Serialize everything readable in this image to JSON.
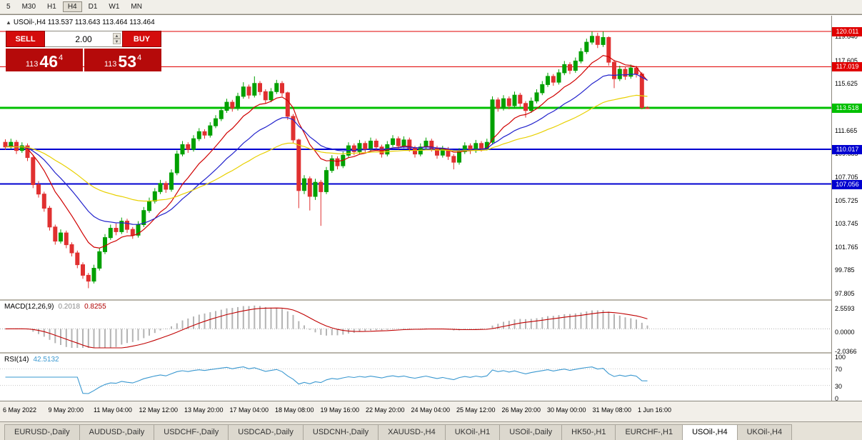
{
  "toolbar": {
    "buttons": [
      "5",
      "M30",
      "H1",
      "H4",
      "D1",
      "W1",
      "MN"
    ],
    "active": "H4"
  },
  "chart_header": {
    "marker": "▲",
    "symbol": "USOil-,H4",
    "ohlc": "113.537 113.643 113.464 113.464"
  },
  "trade_panel": {
    "sell_label": "SELL",
    "buy_label": "BUY",
    "volume": "2.00",
    "bid": {
      "prefix": "113",
      "main": "46",
      "sup": "4"
    },
    "ask": {
      "prefix": "113",
      "main": "53",
      "sup": "4"
    }
  },
  "macd": {
    "label": "MACD(12,26,9)",
    "main_value": "0.2018",
    "signal_value": "0.8255",
    "axis": [
      "2.5593",
      "0.0000",
      "-2.0366"
    ],
    "histogram_color": "#b4b4b4",
    "signal_color": "#c00000"
  },
  "rsi": {
    "label": "RSI(14)",
    "value": "42.5132",
    "axis": [
      "100",
      "70",
      "30",
      "0"
    ],
    "line_color": "#3a98d0"
  },
  "tabs": {
    "items": [
      "EURUSD-,Daily",
      "AUDUSD-,Daily",
      "USDCHF-,Daily",
      "USDCAD-,Daily",
      "USDCNH-,Daily",
      "XAUUSD-,H4",
      "UKOil-,H1",
      "USOil-,Daily",
      "HK50-,H1",
      "EURCHF-,H1",
      "USOil-,H4",
      "UKOil-,H4"
    ],
    "active": "USOil-,H4"
  },
  "chart_data": {
    "type": "candlestick",
    "symbol": "USOil-",
    "timeframe": "H4",
    "up_color": "#00a000",
    "down_color": "#e03030",
    "price_ticks": [
      "119.640",
      "117.605",
      "115.625",
      "113.645",
      "111.665",
      "109.685",
      "107.705",
      "105.725",
      "103.745",
      "101.765",
      "99.785",
      "97.805"
    ],
    "time_labels": [
      "6 May 2022",
      "9 May 20:00",
      "11 May 04:00",
      "12 May 12:00",
      "13 May 20:00",
      "17 May 04:00",
      "18 May 08:00",
      "19 May 16:00",
      "22 May 20:00",
      "24 May 04:00",
      "25 May 12:00",
      "26 May 20:00",
      "30 May 00:00",
      "31 May 08:00",
      "1 Jun 16:00"
    ],
    "levels": [
      {
        "value": 120.011,
        "label": "120.011",
        "color": "#e00000",
        "width": 1
      },
      {
        "value": 117.019,
        "label": "117.019",
        "color": "#e00000",
        "width": 1
      },
      {
        "value": 113.518,
        "label": "113.518",
        "color": "#00c000",
        "width": 3
      },
      {
        "value": 110.017,
        "label": "110.017",
        "color": "#0000d0",
        "width": 2
      },
      {
        "value": 107.056,
        "label": "107.056",
        "color": "#0000d0",
        "width": 2
      }
    ],
    "moving_averages": [
      {
        "period": 10,
        "method": "ema",
        "color": "#d00000"
      },
      {
        "period": 21,
        "method": "ema",
        "color": "#2222cc"
      },
      {
        "period": 45,
        "method": "ema",
        "color": "#e8d000"
      }
    ],
    "macd_axis_range": [
      -2.0366,
      2.5593
    ],
    "rsi_axis_range": [
      0,
      100
    ],
    "candles": [
      [
        110.6,
        110.85,
        109.95,
        110.2
      ],
      [
        110.2,
        110.9,
        110.0,
        110.6
      ],
      [
        110.6,
        110.8,
        109.6,
        109.9
      ],
      [
        109.9,
        110.6,
        109.7,
        110.3
      ],
      [
        110.3,
        110.5,
        109.0,
        109.3
      ],
      [
        109.3,
        109.45,
        106.7,
        107.0
      ],
      [
        107.0,
        107.3,
        105.9,
        106.2
      ],
      [
        106.2,
        106.4,
        104.7,
        105.0
      ],
      [
        105.0,
        105.2,
        103.1,
        103.4
      ],
      [
        103.4,
        103.6,
        101.9,
        102.2
      ],
      [
        102.2,
        103.2,
        102.0,
        102.9
      ],
      [
        102.9,
        103.1,
        101.6,
        101.9
      ],
      [
        101.9,
        102.1,
        100.9,
        101.2
      ],
      [
        101.2,
        101.4,
        99.9,
        100.2
      ],
      [
        100.2,
        100.4,
        99.0,
        99.3
      ],
      [
        99.3,
        99.5,
        98.2,
        98.8
      ],
      [
        98.8,
        100.2,
        98.6,
        99.9
      ],
      [
        99.9,
        101.6,
        99.7,
        101.3
      ],
      [
        101.3,
        102.8,
        101.1,
        102.5
      ],
      [
        102.5,
        103.6,
        102.3,
        103.3
      ],
      [
        103.3,
        103.7,
        102.7,
        103.0
      ],
      [
        103.0,
        104.2,
        102.8,
        103.9
      ],
      [
        103.9,
        104.1,
        102.9,
        103.2
      ],
      [
        103.2,
        103.4,
        102.4,
        102.7
      ],
      [
        102.7,
        103.9,
        102.5,
        103.6
      ],
      [
        103.6,
        105.1,
        103.4,
        104.8
      ],
      [
        104.8,
        105.9,
        104.6,
        105.6
      ],
      [
        105.6,
        106.7,
        105.4,
        106.4
      ],
      [
        106.4,
        107.4,
        106.2,
        107.1
      ],
      [
        107.1,
        107.3,
        106.3,
        106.6
      ],
      [
        106.6,
        108.3,
        106.4,
        108.0
      ],
      [
        108.0,
        109.9,
        107.8,
        109.6
      ],
      [
        109.6,
        110.7,
        109.4,
        110.4
      ],
      [
        110.4,
        110.6,
        109.7,
        110.0
      ],
      [
        110.0,
        111.2,
        109.8,
        110.9
      ],
      [
        110.9,
        111.8,
        110.7,
        111.5
      ],
      [
        111.5,
        111.7,
        110.9,
        111.2
      ],
      [
        111.2,
        112.3,
        111.0,
        112.0
      ],
      [
        112.0,
        112.9,
        111.8,
        112.6
      ],
      [
        112.6,
        113.6,
        112.4,
        113.3
      ],
      [
        113.3,
        114.3,
        113.1,
        114.0
      ],
      [
        114.0,
        114.2,
        113.2,
        113.5
      ],
      [
        113.5,
        114.8,
        113.3,
        114.5
      ],
      [
        114.5,
        115.7,
        114.3,
        115.3
      ],
      [
        115.3,
        115.5,
        114.3,
        114.6
      ],
      [
        114.6,
        116.2,
        114.4,
        115.6
      ],
      [
        115.6,
        115.8,
        114.6,
        114.9
      ],
      [
        114.9,
        115.1,
        113.9,
        114.2
      ],
      [
        114.2,
        115.2,
        114.0,
        114.9
      ],
      [
        114.9,
        115.9,
        114.7,
        115.6
      ],
      [
        115.6,
        115.8,
        114.5,
        114.8
      ],
      [
        114.8,
        114.9,
        112.5,
        112.8
      ],
      [
        112.8,
        113.0,
        110.5,
        110.8
      ],
      [
        110.8,
        110.9,
        105.0,
        106.5
      ],
      [
        106.5,
        107.8,
        106.2,
        107.5
      ],
      [
        107.5,
        107.7,
        104.8,
        106.0
      ],
      [
        106.0,
        107.5,
        105.7,
        107.2
      ],
      [
        107.2,
        107.4,
        103.5,
        106.4
      ],
      [
        106.4,
        108.5,
        106.2,
        108.2
      ],
      [
        108.2,
        109.5,
        108.0,
        109.2
      ],
      [
        109.2,
        109.4,
        108.3,
        108.6
      ],
      [
        108.6,
        109.8,
        108.4,
        109.5
      ],
      [
        109.5,
        110.6,
        109.3,
        110.3
      ],
      [
        110.3,
        110.5,
        109.5,
        109.8
      ],
      [
        109.8,
        110.8,
        109.6,
        110.5
      ],
      [
        110.5,
        110.7,
        109.7,
        110.0
      ],
      [
        110.0,
        111.0,
        109.8,
        110.7
      ],
      [
        110.7,
        110.9,
        109.9,
        110.2
      ],
      [
        110.2,
        110.4,
        109.3,
        109.6
      ],
      [
        109.6,
        110.7,
        109.4,
        110.4
      ],
      [
        110.4,
        111.2,
        110.2,
        110.9
      ],
      [
        110.9,
        111.1,
        110.0,
        110.3
      ],
      [
        110.3,
        111.1,
        110.1,
        110.8
      ],
      [
        110.8,
        111.0,
        109.8,
        110.1
      ],
      [
        110.1,
        110.3,
        109.3,
        109.6
      ],
      [
        109.6,
        110.5,
        109.4,
        110.2
      ],
      [
        110.2,
        111.0,
        110.0,
        110.7
      ],
      [
        110.7,
        110.9,
        109.8,
        110.1
      ],
      [
        110.1,
        110.3,
        109.2,
        109.5
      ],
      [
        109.5,
        110.3,
        109.3,
        110.0
      ],
      [
        110.0,
        110.2,
        109.1,
        109.4
      ],
      [
        109.4,
        109.6,
        108.3,
        108.9
      ],
      [
        108.9,
        110.1,
        108.7,
        109.8
      ],
      [
        109.8,
        110.6,
        109.6,
        110.3
      ],
      [
        110.3,
        110.5,
        109.6,
        109.9
      ],
      [
        109.9,
        110.8,
        109.7,
        110.5
      ],
      [
        110.5,
        110.7,
        109.8,
        110.1
      ],
      [
        110.1,
        110.9,
        109.9,
        110.6
      ],
      [
        110.6,
        114.5,
        110.4,
        114.2
      ],
      [
        114.2,
        114.4,
        113.2,
        113.5
      ],
      [
        113.5,
        114.6,
        113.3,
        114.3
      ],
      [
        114.3,
        114.5,
        113.4,
        113.7
      ],
      [
        113.7,
        114.9,
        113.5,
        114.6
      ],
      [
        114.6,
        114.8,
        113.6,
        113.9
      ],
      [
        113.9,
        114.1,
        112.7,
        113.3
      ],
      [
        113.3,
        114.4,
        113.1,
        114.1
      ],
      [
        114.1,
        115.1,
        113.9,
        114.8
      ],
      [
        114.8,
        115.8,
        114.6,
        115.5
      ],
      [
        115.5,
        116.5,
        115.3,
        116.2
      ],
      [
        116.2,
        116.4,
        115.4,
        115.7
      ],
      [
        115.7,
        116.8,
        115.5,
        116.5
      ],
      [
        116.5,
        117.5,
        116.3,
        117.2
      ],
      [
        117.2,
        117.4,
        116.4,
        116.7
      ],
      [
        116.7,
        117.8,
        116.5,
        117.5
      ],
      [
        117.5,
        118.6,
        117.3,
        118.3
      ],
      [
        118.3,
        119.4,
        118.1,
        119.1
      ],
      [
        119.1,
        120.0,
        118.9,
        119.6
      ],
      [
        119.6,
        119.9,
        118.6,
        118.9
      ],
      [
        118.9,
        120.0,
        118.7,
        119.5
      ],
      [
        119.5,
        119.6,
        117.1,
        117.4
      ],
      [
        117.4,
        117.6,
        115.2,
        116.0
      ],
      [
        116.0,
        117.1,
        115.8,
        116.8
      ],
      [
        116.8,
        117.0,
        115.9,
        116.2
      ],
      [
        116.2,
        117.2,
        116.0,
        116.9
      ],
      [
        116.9,
        117.1,
        116.1,
        116.4
      ],
      [
        116.4,
        116.55,
        113.4,
        113.55
      ],
      [
        113.537,
        113.643,
        113.464,
        113.464
      ]
    ]
  }
}
